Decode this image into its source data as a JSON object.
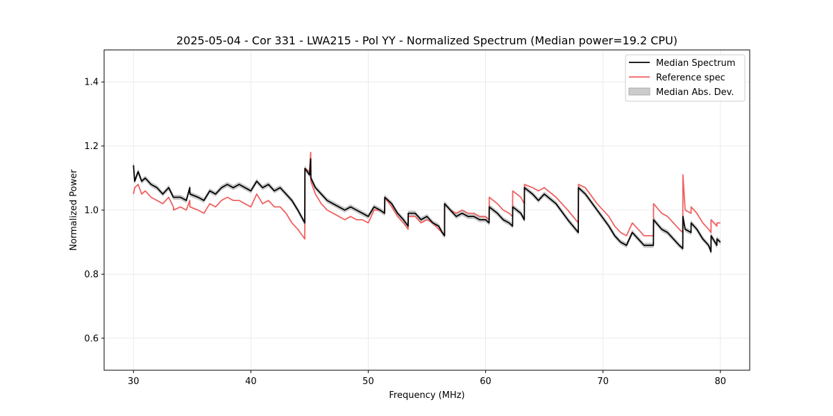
{
  "chart_data": {
    "type": "line",
    "title": "2025-05-04 - Cor 331 - LWA215 - Pol YY - Normalized Spectrum (Median power=19.2 CPU)",
    "xlabel": "Frequency (MHz)",
    "ylabel": "Normalized Power",
    "xlim": [
      27.5,
      82.5
    ],
    "ylim": [
      0.5,
      1.5
    ],
    "xticks": [
      30,
      40,
      50,
      60,
      70,
      80
    ],
    "yticks": [
      0.6,
      0.8,
      1.0,
      1.2,
      1.4
    ],
    "xtick_labels": [
      "30",
      "40",
      "50",
      "60",
      "70",
      "80"
    ],
    "ytick_labels": [
      "0.6",
      "0.8",
      "1.0",
      "1.2",
      "1.4"
    ],
    "grid": true,
    "legend_position": "top-right",
    "series": [
      {
        "name": "Median Spectrum",
        "color": "#000000",
        "x": [
          30.0,
          30.1,
          30.4,
          30.7,
          31.0,
          31.5,
          32.0,
          32.5,
          33.0,
          33.4,
          33.41,
          34.0,
          34.5,
          34.8,
          34.81,
          35.5,
          36.0,
          36.5,
          37.0,
          37.5,
          38.0,
          38.5,
          39.0,
          39.5,
          40.0,
          40.5,
          41.0,
          41.5,
          42.0,
          42.5,
          43.0,
          43.5,
          44.0,
          44.6,
          44.61,
          45.0,
          45.1,
          45.11,
          45.5,
          46.0,
          46.5,
          47.0,
          47.5,
          48.0,
          48.5,
          49.0,
          49.5,
          50.0,
          50.5,
          51.0,
          51.4,
          51.41,
          52.0,
          52.5,
          53.0,
          53.4,
          53.41,
          54.0,
          54.5,
          55.0,
          55.5,
          56.0,
          56.3,
          56.5,
          56.51,
          57.0,
          57.5,
          58.0,
          58.5,
          59.0,
          59.5,
          60.0,
          60.3,
          60.31,
          61.0,
          61.5,
          62.0,
          62.3,
          62.31,
          63.0,
          63.3,
          63.31,
          64.0,
          64.5,
          65.0,
          66.0,
          67.0,
          67.9,
          67.91,
          68.5,
          69.5,
          70.5,
          71.0,
          71.5,
          72.0,
          72.5,
          73.0,
          73.5,
          74.3,
          74.31,
          75.0,
          75.5,
          76.0,
          76.5,
          76.8,
          76.81,
          77.0,
          77.5,
          77.51,
          78.0,
          78.5,
          79.0,
          79.2,
          79.21,
          79.7,
          79.71,
          80.0
        ],
        "y": [
          1.14,
          1.09,
          1.12,
          1.09,
          1.1,
          1.08,
          1.07,
          1.05,
          1.07,
          1.04,
          1.04,
          1.04,
          1.03,
          1.07,
          1.05,
          1.04,
          1.03,
          1.06,
          1.05,
          1.07,
          1.08,
          1.07,
          1.08,
          1.07,
          1.06,
          1.09,
          1.07,
          1.08,
          1.06,
          1.07,
          1.05,
          1.03,
          1.0,
          0.96,
          1.13,
          1.11,
          1.16,
          1.1,
          1.07,
          1.05,
          1.03,
          1.02,
          1.01,
          1.0,
          1.01,
          1.0,
          0.99,
          0.98,
          1.01,
          1.0,
          0.99,
          1.04,
          1.02,
          0.99,
          0.97,
          0.95,
          0.99,
          0.99,
          0.97,
          0.98,
          0.96,
          0.95,
          0.93,
          0.92,
          1.02,
          1.0,
          0.98,
          0.99,
          0.98,
          0.98,
          0.97,
          0.97,
          0.96,
          1.01,
          0.99,
          0.97,
          0.96,
          0.95,
          1.01,
          0.99,
          0.97,
          1.07,
          1.05,
          1.03,
          1.05,
          1.02,
          0.97,
          0.93,
          1.07,
          1.05,
          1.0,
          0.95,
          0.92,
          0.9,
          0.89,
          0.93,
          0.91,
          0.89,
          0.89,
          0.97,
          0.94,
          0.93,
          0.91,
          0.89,
          0.88,
          0.98,
          0.94,
          0.93,
          0.96,
          0.94,
          0.91,
          0.89,
          0.87,
          0.92,
          0.89,
          0.91,
          0.9
        ],
        "deviation": 0.007
      },
      {
        "name": "Reference spec",
        "color": "#f06060",
        "x": [
          30.0,
          30.1,
          30.4,
          30.7,
          31.0,
          31.5,
          32.0,
          32.5,
          33.0,
          33.4,
          33.41,
          34.0,
          34.5,
          34.8,
          34.81,
          35.5,
          36.0,
          36.5,
          37.0,
          37.5,
          38.0,
          38.5,
          39.0,
          39.5,
          40.0,
          40.5,
          41.0,
          41.5,
          42.0,
          42.5,
          43.0,
          43.5,
          44.0,
          44.6,
          44.61,
          45.0,
          45.1,
          45.11,
          45.5,
          46.0,
          46.5,
          47.0,
          47.5,
          48.0,
          48.5,
          49.0,
          49.5,
          50.0,
          50.5,
          51.0,
          51.4,
          51.41,
          52.0,
          52.5,
          53.0,
          53.4,
          53.41,
          54.0,
          54.5,
          55.0,
          55.5,
          56.0,
          56.3,
          56.5,
          56.51,
          57.0,
          57.5,
          58.0,
          58.5,
          59.0,
          59.5,
          60.0,
          60.3,
          60.31,
          61.0,
          61.5,
          62.0,
          62.3,
          62.31,
          63.0,
          63.3,
          63.31,
          64.0,
          64.5,
          65.0,
          66.0,
          67.0,
          67.9,
          67.91,
          68.5,
          69.5,
          70.5,
          71.0,
          71.5,
          72.0,
          72.5,
          73.0,
          73.5,
          74.3,
          74.31,
          75.0,
          75.5,
          76.0,
          76.5,
          76.8,
          76.81,
          77.0,
          77.5,
          77.51,
          78.0,
          78.5,
          79.0,
          79.2,
          79.21,
          79.7,
          79.71,
          80.0
        ],
        "y": [
          1.05,
          1.07,
          1.08,
          1.05,
          1.06,
          1.04,
          1.03,
          1.02,
          1.04,
          1.01,
          1.0,
          1.01,
          1.0,
          1.03,
          1.01,
          1.0,
          0.99,
          1.02,
          1.01,
          1.03,
          1.04,
          1.03,
          1.03,
          1.02,
          1.01,
          1.05,
          1.02,
          1.03,
          1.01,
          1.01,
          0.99,
          0.96,
          0.94,
          0.91,
          1.13,
          1.12,
          1.18,
          1.09,
          1.05,
          1.02,
          1.0,
          0.99,
          0.98,
          0.97,
          0.98,
          0.97,
          0.97,
          0.96,
          1.0,
          1.0,
          0.99,
          1.04,
          1.01,
          0.98,
          0.96,
          0.94,
          0.98,
          0.98,
          0.96,
          0.97,
          0.96,
          0.94,
          0.93,
          0.92,
          1.02,
          1.0,
          0.99,
          1.0,
          0.99,
          0.99,
          0.98,
          0.98,
          0.97,
          1.04,
          1.02,
          1.0,
          0.99,
          0.98,
          1.06,
          1.04,
          1.02,
          1.08,
          1.07,
          1.06,
          1.07,
          1.04,
          1.0,
          0.96,
          1.08,
          1.07,
          1.02,
          0.98,
          0.95,
          0.93,
          0.92,
          0.96,
          0.94,
          0.92,
          0.92,
          1.02,
          0.99,
          0.98,
          0.96,
          0.94,
          0.93,
          1.11,
          1.0,
          0.99,
          1.01,
          0.99,
          0.96,
          0.94,
          0.93,
          0.97,
          0.95,
          0.96,
          0.96
        ]
      },
      {
        "name": "Median Abs. Dev.",
        "color": "#aaaaaa"
      }
    ]
  }
}
